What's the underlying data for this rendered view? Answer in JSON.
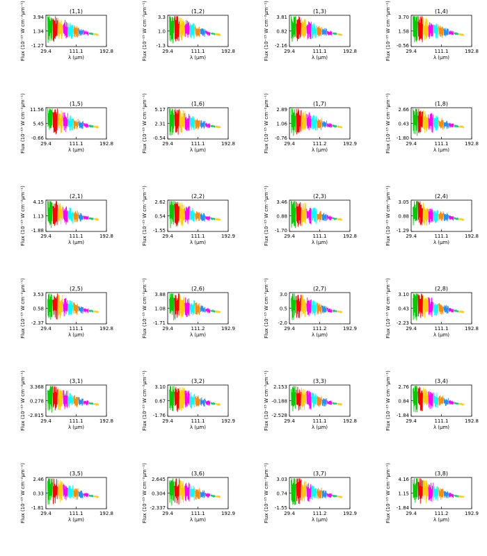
{
  "figure": {
    "xlabel": "λ (µm)",
    "ylabel": "Flux (10⁻¹⁵ W cm⁻²µm⁻¹)",
    "segment_colors": [
      "#00cc00",
      "#ff0000",
      "#ffcc00",
      "#ff00ff",
      "#00ffff",
      "#ff8c00",
      "#1e90ff",
      "#ff00ff",
      "#00cc66",
      "#ffcc00"
    ]
  },
  "chart_data": [
    {
      "type": "line",
      "title": "(1,1)",
      "xticks": [
        "29.4",
        "111.1",
        "192.8"
      ],
      "yticks": [
        "-1.27",
        "1.34",
        "3.94"
      ],
      "xlim": [
        29.4,
        192.8
      ],
      "ylim": [
        -1.27,
        3.94
      ]
    },
    {
      "type": "line",
      "title": "(1,2)",
      "xticks": [
        "29.4",
        "111.1",
        "192.8"
      ],
      "yticks": [
        "-1.3",
        "1.0",
        "3.3"
      ],
      "xlim": [
        29.4,
        192.8
      ],
      "ylim": [
        -1.3,
        3.3
      ]
    },
    {
      "type": "line",
      "title": "(1,3)",
      "xticks": [
        "29.4",
        "111.1",
        "192.8"
      ],
      "yticks": [
        "-2.16",
        "0.82",
        "3.81"
      ],
      "xlim": [
        29.4,
        192.8
      ],
      "ylim": [
        -2.16,
        3.81
      ]
    },
    {
      "type": "line",
      "title": "(1,4)",
      "xticks": [
        "29.4",
        "111.1",
        "192.8"
      ],
      "yticks": [
        "-0.56",
        "1.58",
        "3.70"
      ],
      "xlim": [
        29.4,
        192.8
      ],
      "ylim": [
        -0.56,
        3.7
      ]
    },
    {
      "type": "line",
      "title": "(1,5)",
      "xticks": [
        "29.4",
        "111.1",
        "192.8"
      ],
      "yticks": [
        "-0.66",
        "5.45",
        "11.56"
      ],
      "xlim": [
        29.4,
        192.8
      ],
      "ylim": [
        -0.66,
        11.56
      ]
    },
    {
      "type": "line",
      "title": "(1,6)",
      "xticks": [
        "29.4",
        "111.1",
        "192.8"
      ],
      "yticks": [
        "-0.54",
        "2.31",
        "5.17"
      ],
      "xlim": [
        29.4,
        192.8
      ],
      "ylim": [
        -0.54,
        5.17
      ]
    },
    {
      "type": "line",
      "title": "(1,7)",
      "xticks": [
        "29.4",
        "111.2",
        "192.9"
      ],
      "yticks": [
        "-0.76",
        "1.06",
        "2.89"
      ],
      "xlim": [
        29.4,
        192.9
      ],
      "ylim": [
        -0.76,
        2.89
      ]
    },
    {
      "type": "line",
      "title": "(1,8)",
      "xticks": [
        "29.4",
        "111.1",
        "192.8"
      ],
      "yticks": [
        "-1.80",
        "0.43",
        "2.66"
      ],
      "xlim": [
        29.4,
        192.8
      ],
      "ylim": [
        -1.8,
        2.66
      ]
    },
    {
      "type": "line",
      "title": "(2,1)",
      "xticks": [
        "29.4",
        "111.1",
        "192.8"
      ],
      "yticks": [
        "-1.88",
        "1.13",
        "4.15"
      ],
      "xlim": [
        29.4,
        192.8
      ],
      "ylim": [
        -1.88,
        4.15
      ]
    },
    {
      "type": "line",
      "title": "(2,2)",
      "xticks": [
        "29.4",
        "111.1",
        "192.9"
      ],
      "yticks": [
        "-1.55",
        "0.54",
        "2.62"
      ],
      "xlim": [
        29.4,
        192.9
      ],
      "ylim": [
        -1.55,
        2.62
      ]
    },
    {
      "type": "line",
      "title": "(2,3)",
      "xticks": [
        "29.4",
        "111.1",
        "192.8"
      ],
      "yticks": [
        "-1.70",
        "0.88",
        "3.46"
      ],
      "xlim": [
        29.4,
        192.8
      ],
      "ylim": [
        -1.7,
        3.46
      ]
    },
    {
      "type": "line",
      "title": "(2,4)",
      "xticks": [
        "29.4",
        "111.1",
        "192.8"
      ],
      "yticks": [
        "-1.29",
        "0.88",
        "3.05"
      ],
      "xlim": [
        29.4,
        192.8
      ],
      "ylim": [
        -1.29,
        3.05
      ]
    },
    {
      "type": "line",
      "title": "(2,5)",
      "xticks": [
        "29.4",
        "111.1",
        "192.8"
      ],
      "yticks": [
        "-2.37",
        "0.58",
        "3.53"
      ],
      "xlim": [
        29.4,
        192.8
      ],
      "ylim": [
        -2.37,
        3.53
      ]
    },
    {
      "type": "line",
      "title": "(2,6)",
      "xticks": [
        "29.4",
        "111.2",
        "192.9"
      ],
      "yticks": [
        "-1.71",
        "1.08",
        "3.88"
      ],
      "xlim": [
        29.4,
        192.9
      ],
      "ylim": [
        -1.71,
        3.88
      ]
    },
    {
      "type": "line",
      "title": "(2,7)",
      "xticks": [
        "29.4",
        "111.2",
        "192.9"
      ],
      "yticks": [
        "-2.0",
        "0.5",
        "3.0"
      ],
      "xlim": [
        29.4,
        192.9
      ],
      "ylim": [
        -2.0,
        3.0
      ]
    },
    {
      "type": "line",
      "title": "(2,8)",
      "xticks": [
        "29.4",
        "111.1",
        "192.8"
      ],
      "yticks": [
        "-2.23",
        "0.43",
        "3.10"
      ],
      "xlim": [
        29.4,
        192.8
      ],
      "ylim": [
        -2.23,
        3.1
      ]
    },
    {
      "type": "line",
      "title": "(3,1)",
      "xticks": [
        "29.4",
        "111.1",
        "192.8"
      ],
      "yticks": [
        "-2.815",
        "0.278",
        "3.368"
      ],
      "xlim": [
        29.4,
        192.8
      ],
      "ylim": [
        -2.815,
        3.368
      ]
    },
    {
      "type": "line",
      "title": "(3,2)",
      "xticks": [
        "29.4",
        "111.1",
        "192.9"
      ],
      "yticks": [
        "-1.76",
        "0.67",
        "3.10"
      ],
      "xlim": [
        29.4,
        192.9
      ],
      "ylim": [
        -1.76,
        3.1
      ]
    },
    {
      "type": "line",
      "title": "(3,3)",
      "xticks": [
        "29.4",
        "111.1",
        "192.8"
      ],
      "yticks": [
        "-2.528",
        "-0.188",
        "2.153"
      ],
      "xlim": [
        29.4,
        192.8
      ],
      "ylim": [
        -2.528,
        2.153
      ]
    },
    {
      "type": "line",
      "title": "(3,4)",
      "xticks": [
        "29.4",
        "111.1",
        "192.8"
      ],
      "yticks": [
        "-1.84",
        "0.84",
        "2.76"
      ],
      "xlim": [
        29.4,
        192.8
      ],
      "ylim": [
        -1.84,
        2.76
      ]
    },
    {
      "type": "line",
      "title": "(3,5)",
      "xticks": [
        "29.4",
        "111.1",
        "192.8"
      ],
      "yticks": [
        "-1.81",
        "0.33",
        "2.46"
      ],
      "xlim": [
        29.4,
        192.8
      ],
      "ylim": [
        -1.81,
        2.46
      ]
    },
    {
      "type": "line",
      "title": "(3,6)",
      "xticks": [
        "29.4",
        "111.1",
        "192.9"
      ],
      "yticks": [
        "-2.337",
        "0.304",
        "2.645"
      ],
      "xlim": [
        29.4,
        192.9
      ],
      "ylim": [
        -2.337,
        2.645
      ]
    },
    {
      "type": "line",
      "title": "(3,7)",
      "xticks": [
        "29.4",
        "111.2",
        "192.9"
      ],
      "yticks": [
        "-1.55",
        "0.74",
        "3.03"
      ],
      "xlim": [
        29.4,
        192.9
      ],
      "ylim": [
        -1.55,
        3.03
      ]
    },
    {
      "type": "line",
      "title": "(3,8)",
      "xticks": [
        "29.4",
        "111.2",
        "192.9"
      ],
      "yticks": [
        "-1.84",
        "1.15",
        "4.16"
      ],
      "xlim": [
        29.4,
        192.9
      ],
      "ylim": [
        -1.84,
        4.16
      ]
    }
  ]
}
